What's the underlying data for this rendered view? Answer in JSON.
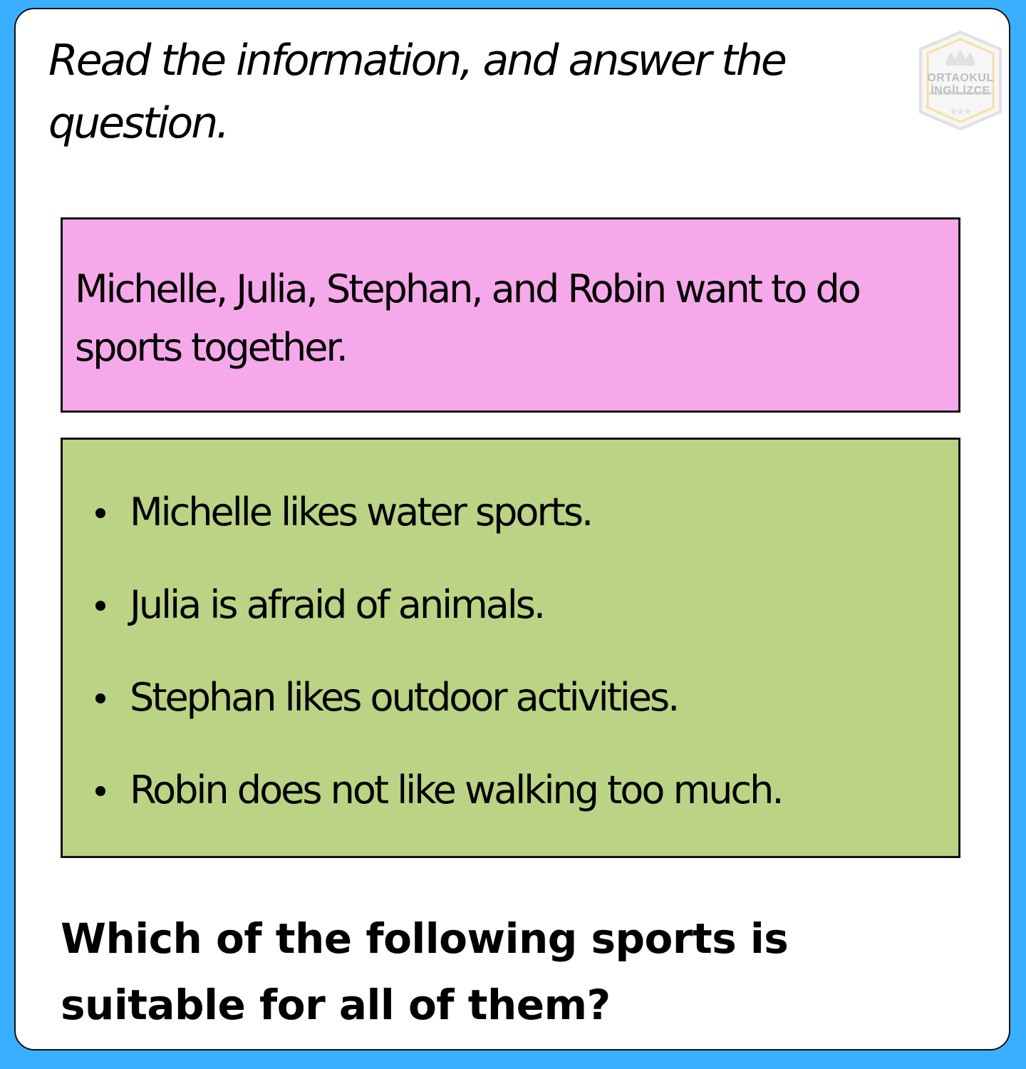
{
  "instruction": "Read the information, and answer the question.",
  "logo": {
    "line1": "ORTAOKUL",
    "line2": "İNGİLİZCE",
    "icon": "crown-shield-icon"
  },
  "intro_text": "Michelle, Julia, Stephan, and Robin want to do sports together.",
  "facts": [
    "Michelle likes water sports.",
    "Julia is afraid of animals.",
    "Stephan likes outdoor activities.",
    "Robin does not like walking too much."
  ],
  "question": "Which of the following sports is suitable for all of them?",
  "colors": {
    "background": "#3aafff",
    "card": "#ffffff",
    "intro_box": "#f6a9ea",
    "facts_box": "#bbd384",
    "logo": "#c9c9c9",
    "logo_accent": "#f0c85a"
  }
}
